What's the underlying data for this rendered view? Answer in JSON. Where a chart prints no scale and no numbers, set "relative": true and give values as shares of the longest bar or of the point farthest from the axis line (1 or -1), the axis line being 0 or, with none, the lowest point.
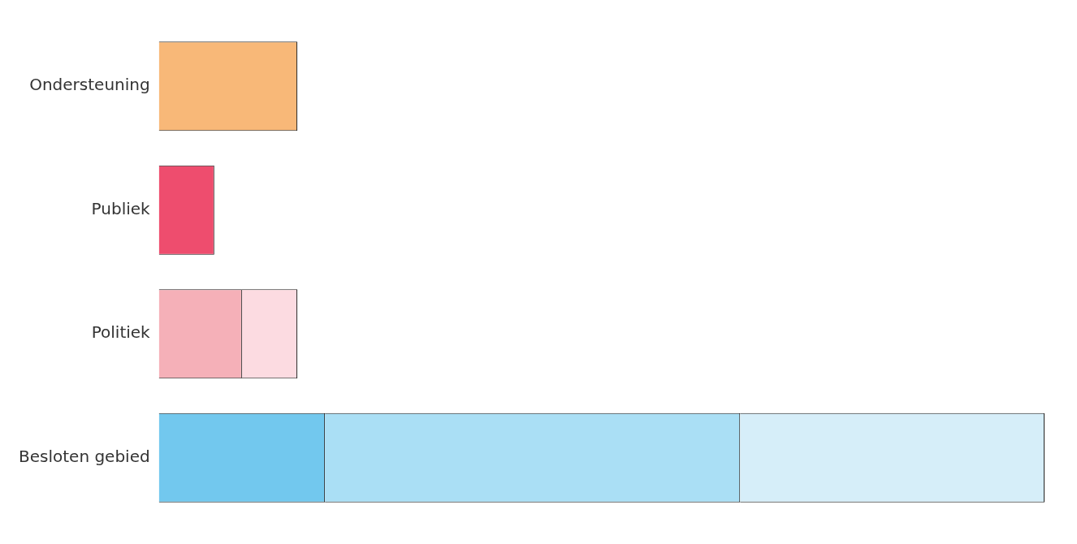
{
  "chart_data": {
    "type": "bar",
    "orientation": "horizontal",
    "stacked": true,
    "relative": true,
    "grid": false,
    "legend": false,
    "tick_labels": "y",
    "categories": [
      "Ondersteuning",
      "Publiek",
      "Politiek",
      "Besloten gebied"
    ],
    "series": [
      {
        "colors": [
          "#f8b878",
          "#ee4d6e",
          "#f5b0b8",
          "#72c8ee"
        ],
        "values": [
          0.15625,
          0.0625,
          0.09375,
          0.1875
        ]
      },
      {
        "colors": [
          "#f8b878",
          "#ee4d6e",
          "#fcdbe1",
          "#aadff5"
        ],
        "values": [
          null,
          null,
          0.0625,
          0.46875
        ]
      },
      {
        "colors": [
          "#f8b878",
          "#ee4d6e",
          "#fcdbe1",
          "#d6eef9"
        ],
        "values": [
          null,
          null,
          null,
          0.34375
        ]
      }
    ]
  }
}
